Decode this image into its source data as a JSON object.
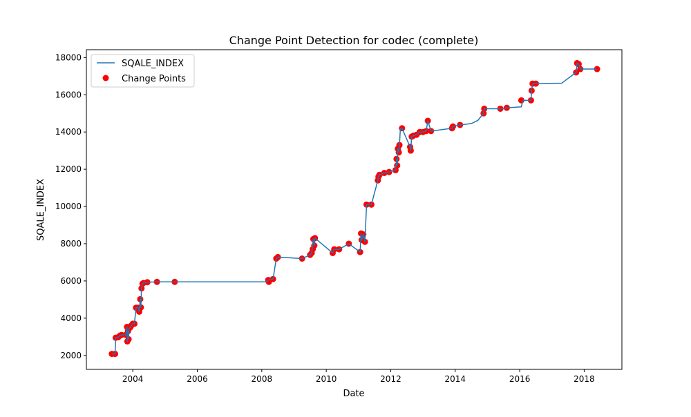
{
  "chart_data": {
    "type": "line",
    "title": "Change Point Detection for codec (complete)",
    "xlabel": "Date",
    "ylabel": "SQALE_INDEX",
    "xlim": [
      2002.56,
      2019.17
    ],
    "ylim": [
      1250,
      18420
    ],
    "xticks": [
      2004,
      2006,
      2008,
      2010,
      2012,
      2014,
      2016,
      2018
    ],
    "yticks": [
      2000,
      4000,
      6000,
      8000,
      10000,
      12000,
      14000,
      16000,
      18000
    ],
    "grid": false,
    "legend": {
      "position": "top-left",
      "entries": [
        {
          "label": "SQALE_INDEX",
          "kind": "line",
          "color": "#1f77b4"
        },
        {
          "label": "Change Points",
          "kind": "marker",
          "color": "#ff0000"
        }
      ]
    },
    "series": [
      {
        "name": "SQALE_INDEX",
        "color": "#1f77b4",
        "points": [
          [
            2003.35,
            2080
          ],
          [
            2003.45,
            2080
          ],
          [
            2003.47,
            2950
          ],
          [
            2003.55,
            2980
          ],
          [
            2003.6,
            3060
          ],
          [
            2003.65,
            3100
          ],
          [
            2003.78,
            3100
          ],
          [
            2003.82,
            3530
          ],
          [
            2003.83,
            2750
          ],
          [
            2003.85,
            3300
          ],
          [
            2003.87,
            2870
          ],
          [
            2003.88,
            3450
          ],
          [
            2003.92,
            3500
          ],
          [
            2003.95,
            3600
          ],
          [
            2004.0,
            3700
          ],
          [
            2004.05,
            3700
          ],
          [
            2004.1,
            4560
          ],
          [
            2004.17,
            4560
          ],
          [
            2004.2,
            4350
          ],
          [
            2004.23,
            5020
          ],
          [
            2004.25,
            4580
          ],
          [
            2004.27,
            5600
          ],
          [
            2004.3,
            5850
          ],
          [
            2004.33,
            5890
          ],
          [
            2004.45,
            5930
          ],
          [
            2004.75,
            5950
          ],
          [
            2005.3,
            5950
          ],
          [
            2008.15,
            5950
          ],
          [
            2008.2,
            6050
          ],
          [
            2008.35,
            6100
          ],
          [
            2008.45,
            7200
          ],
          [
            2008.5,
            7280
          ],
          [
            2009.25,
            7200
          ],
          [
            2009.5,
            7400
          ],
          [
            2009.55,
            7500
          ],
          [
            2009.6,
            8250
          ],
          [
            2009.63,
            7900
          ],
          [
            2009.65,
            8300
          ],
          [
            2010.2,
            7500
          ],
          [
            2010.25,
            7700
          ],
          [
            2010.4,
            7700
          ],
          [
            2010.7,
            8000
          ],
          [
            2011.05,
            7550
          ],
          [
            2011.08,
            8550
          ],
          [
            2011.1,
            8200
          ],
          [
            2011.15,
            8500
          ],
          [
            2011.2,
            8100
          ],
          [
            2011.25,
            10100
          ],
          [
            2011.4,
            10100
          ],
          [
            2011.6,
            11400
          ],
          [
            2011.62,
            11600
          ],
          [
            2011.65,
            11700
          ],
          [
            2011.8,
            11800
          ],
          [
            2011.95,
            11850
          ],
          [
            2012.15,
            11950
          ],
          [
            2012.18,
            12550
          ],
          [
            2012.2,
            12200
          ],
          [
            2012.22,
            13100
          ],
          [
            2012.25,
            12900
          ],
          [
            2012.27,
            13300
          ],
          [
            2012.3,
            14200
          ],
          [
            2012.35,
            14200
          ],
          [
            2012.6,
            13200
          ],
          [
            2012.62,
            13000
          ],
          [
            2012.65,
            13750
          ],
          [
            2012.7,
            13800
          ],
          [
            2012.8,
            13850
          ],
          [
            2012.9,
            14000
          ],
          [
            2013.0,
            14000
          ],
          [
            2013.1,
            14050
          ],
          [
            2013.15,
            14600
          ],
          [
            2013.25,
            14050
          ],
          [
            2013.9,
            14200
          ],
          [
            2013.93,
            14300
          ],
          [
            2014.15,
            14380
          ],
          [
            2014.5,
            14450
          ],
          [
            2014.7,
            14620
          ],
          [
            2014.88,
            15000
          ],
          [
            2014.9,
            15250
          ],
          [
            2015.4,
            15250
          ],
          [
            2015.6,
            15300
          ],
          [
            2016.05,
            15350
          ],
          [
            2016.1,
            15700
          ],
          [
            2016.35,
            15700
          ],
          [
            2016.37,
            16220
          ],
          [
            2016.4,
            16600
          ],
          [
            2016.5,
            16600
          ],
          [
            2017.3,
            16620
          ],
          [
            2017.75,
            17200
          ],
          [
            2017.78,
            17700
          ],
          [
            2017.83,
            17650
          ],
          [
            2017.88,
            17380
          ],
          [
            2018.4,
            17380
          ]
        ]
      },
      {
        "name": "Change Points",
        "color": "#ff0000",
        "points": [
          [
            2003.35,
            2080
          ],
          [
            2003.45,
            2080
          ],
          [
            2003.47,
            2950
          ],
          [
            2003.55,
            2980
          ],
          [
            2003.6,
            3060
          ],
          [
            2003.65,
            3100
          ],
          [
            2003.78,
            3100
          ],
          [
            2003.82,
            3530
          ],
          [
            2003.83,
            2750
          ],
          [
            2003.85,
            3300
          ],
          [
            2003.87,
            2870
          ],
          [
            2003.88,
            3450
          ],
          [
            2003.92,
            3500
          ],
          [
            2003.95,
            3600
          ],
          [
            2004.0,
            3700
          ],
          [
            2004.05,
            3700
          ],
          [
            2004.1,
            4560
          ],
          [
            2004.17,
            4560
          ],
          [
            2004.2,
            4350
          ],
          [
            2004.23,
            5020
          ],
          [
            2004.25,
            4580
          ],
          [
            2004.27,
            5600
          ],
          [
            2004.3,
            5850
          ],
          [
            2004.33,
            5890
          ],
          [
            2004.45,
            5930
          ],
          [
            2004.75,
            5950
          ],
          [
            2005.3,
            5950
          ],
          [
            2008.2,
            6050
          ],
          [
            2008.22,
            5950
          ],
          [
            2008.35,
            6100
          ],
          [
            2008.45,
            7200
          ],
          [
            2008.5,
            7280
          ],
          [
            2009.25,
            7200
          ],
          [
            2009.5,
            7400
          ],
          [
            2009.55,
            7500
          ],
          [
            2009.58,
            7700
          ],
          [
            2009.6,
            8250
          ],
          [
            2009.63,
            7900
          ],
          [
            2009.65,
            8300
          ],
          [
            2010.2,
            7500
          ],
          [
            2010.25,
            7700
          ],
          [
            2010.4,
            7700
          ],
          [
            2010.7,
            8000
          ],
          [
            2011.05,
            7550
          ],
          [
            2011.08,
            8550
          ],
          [
            2011.1,
            8200
          ],
          [
            2011.15,
            8500
          ],
          [
            2011.2,
            8100
          ],
          [
            2011.25,
            10100
          ],
          [
            2011.4,
            10100
          ],
          [
            2011.6,
            11400
          ],
          [
            2011.62,
            11600
          ],
          [
            2011.65,
            11700
          ],
          [
            2011.8,
            11800
          ],
          [
            2011.95,
            11850
          ],
          [
            2012.15,
            11950
          ],
          [
            2012.18,
            12550
          ],
          [
            2012.2,
            12200
          ],
          [
            2012.22,
            13100
          ],
          [
            2012.25,
            12900
          ],
          [
            2012.27,
            13300
          ],
          [
            2012.35,
            14200
          ],
          [
            2012.6,
            13200
          ],
          [
            2012.62,
            13000
          ],
          [
            2012.65,
            13750
          ],
          [
            2012.7,
            13800
          ],
          [
            2012.8,
            13850
          ],
          [
            2012.9,
            14000
          ],
          [
            2013.0,
            14000
          ],
          [
            2013.1,
            14050
          ],
          [
            2013.15,
            14600
          ],
          [
            2013.25,
            14050
          ],
          [
            2013.9,
            14200
          ],
          [
            2013.93,
            14300
          ],
          [
            2014.15,
            14380
          ],
          [
            2014.88,
            15000
          ],
          [
            2014.9,
            15250
          ],
          [
            2015.4,
            15250
          ],
          [
            2015.6,
            15300
          ],
          [
            2016.05,
            15700
          ],
          [
            2016.35,
            15700
          ],
          [
            2016.37,
            16220
          ],
          [
            2016.4,
            16600
          ],
          [
            2016.5,
            16600
          ],
          [
            2017.75,
            17200
          ],
          [
            2017.78,
            17700
          ],
          [
            2017.83,
            17650
          ],
          [
            2017.88,
            17380
          ],
          [
            2018.4,
            17380
          ]
        ]
      }
    ]
  }
}
